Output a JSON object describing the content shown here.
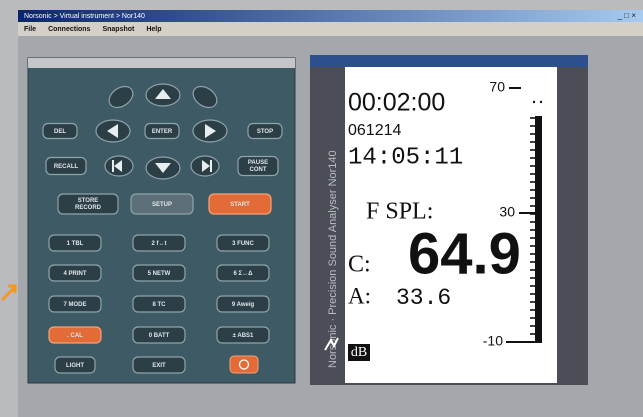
{
  "window": {
    "title": "Norsonic > Virtual instrument > Nor140",
    "controls": "_ □ ×"
  },
  "menu": [
    "File",
    "Connections",
    "Snapshot",
    "Help"
  ],
  "keypad": {
    "labels": [
      "DEL",
      "ENTER",
      "STOP",
      "RECALL",
      [
        "PAUSE",
        "CONT"
      ],
      [
        "STORE",
        "RECORD"
      ],
      "SETUP",
      "START",
      "1 TBL",
      "2 f↔t",
      "3 FUNC",
      "4 PRINT",
      "5 NETW",
      "6 Σ↔Δ",
      "7 MODE",
      "8 TC",
      "9 Aweig",
      ". CAL",
      "0 BATT",
      "± ABS1",
      "LIGHT",
      "EXIT"
    ]
  },
  "display": {
    "brand": "Norsonic · Precision Sound Analyser Nor140",
    "timer": "00:02:00",
    "date": "061214",
    "clock": "14:05:11",
    "mode": "F SPL:",
    "channel_c": "C:",
    "value_c": "64.9",
    "channel_a": "A:",
    "value_a": "33.6",
    "unit": "dB",
    "scale": [
      "70",
      "30",
      "-10"
    ]
  }
}
